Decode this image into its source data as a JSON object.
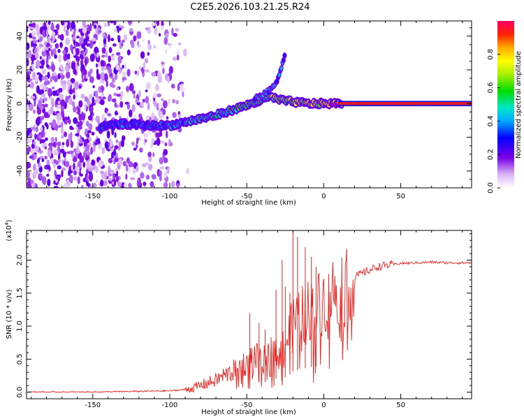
{
  "title": "C2E5.2026.103.21.25.R24",
  "chart_data": [
    {
      "type": "heatmap",
      "xlabel": "Height of straight line (km)",
      "ylabel": "Frequency (Hz)",
      "xlim": [
        -193,
        96
      ],
      "ylim": [
        -50,
        49
      ],
      "xticks": [
        -150,
        -100,
        -50,
        0,
        50
      ],
      "yticks": [
        -40,
        -20,
        0,
        20,
        40
      ],
      "colorbar": {
        "label": "Normalized spectral amplitude",
        "range": [
          0,
          1
        ],
        "ticks": [
          "0.0",
          "0.2",
          "0.4",
          "0.6",
          "0.8"
        ]
      },
      "ridge": {
        "x": [
          -145,
          -130,
          -115,
          -100,
          -90,
          -80,
          -70,
          -60,
          -50,
          -40,
          -35,
          -28,
          -20,
          -10,
          0,
          10,
          20,
          50,
          95
        ],
        "freq": [
          -14,
          -12,
          -13,
          -13,
          -11,
          -9,
          -7,
          -4,
          -1,
          2,
          4,
          2,
          1,
          0,
          0,
          0,
          0,
          0,
          0
        ],
        "amplitude": [
          0.3,
          0.35,
          0.35,
          0.35,
          0.4,
          0.45,
          0.5,
          0.5,
          0.55,
          0.55,
          0.6,
          0.65,
          0.7,
          0.75,
          0.8,
          0.9,
          1.0,
          1.0,
          1.0
        ]
      },
      "branch": {
        "x": [
          -45,
          -40,
          -35,
          -30,
          -27,
          -25
        ],
        "freq": [
          3,
          5,
          8,
          14,
          23,
          30
        ],
        "amplitude": [
          0.4,
          0.45,
          0.45,
          0.4,
          0.35,
          0.2
        ]
      }
    },
    {
      "type": "line",
      "xlabel": "Height of straight line (km)",
      "ylabel": "SNR (10 * v/v)",
      "scale_label": "(x10",
      "scale_exp": "4",
      "scale_close": ")",
      "xlim": [
        -193,
        96
      ],
      "ylim": [
        -0.1,
        2.45
      ],
      "xticks": [
        -150,
        -100,
        -50,
        0,
        50
      ],
      "yticks": [
        "0.0",
        "0.5",
        "1.0",
        "1.5",
        "2.0"
      ],
      "series": [
        {
          "name": "SNR",
          "color": "#e8231f",
          "x": [
            -193,
            -150,
            -100,
            -90,
            -85,
            -80,
            -75,
            -70,
            -65,
            -60,
            -55,
            -50,
            -45,
            -40,
            -35,
            -30,
            -27,
            -25,
            -22,
            -20,
            -18,
            -15,
            -10,
            -5,
            0,
            5,
            10,
            15,
            20,
            25,
            30,
            35,
            40,
            50,
            60,
            70,
            80,
            90,
            96
          ],
          "values": [
            0.0,
            0.0,
            0.02,
            0.04,
            0.06,
            0.1,
            0.14,
            0.18,
            0.25,
            0.3,
            0.4,
            0.45,
            0.55,
            0.45,
            0.6,
            0.7,
            0.65,
            0.75,
            0.9,
            1.05,
            1.1,
            1.15,
            1.25,
            1.3,
            1.4,
            1.5,
            1.6,
            1.68,
            1.75,
            1.8,
            1.85,
            1.9,
            1.92,
            1.95,
            1.96,
            1.97,
            1.96,
            1.96,
            1.96
          ],
          "spikes": [
            [
              -48,
              1.2
            ],
            [
              -42,
              1.05
            ],
            [
              -38,
              0.95
            ],
            [
              -31,
              1.55
            ],
            [
              -27,
              2.0
            ],
            [
              -25,
              1.6
            ],
            [
              -22,
              1.5
            ],
            [
              -20,
              2.45
            ],
            [
              -17,
              2.35
            ],
            [
              -12,
              2.2
            ],
            [
              -8,
              2.05
            ],
            [
              -5,
              1.9
            ]
          ]
        }
      ]
    }
  ],
  "colors": {
    "line": "#e8231f",
    "background": "#ffffff",
    "axes": "#000000"
  }
}
